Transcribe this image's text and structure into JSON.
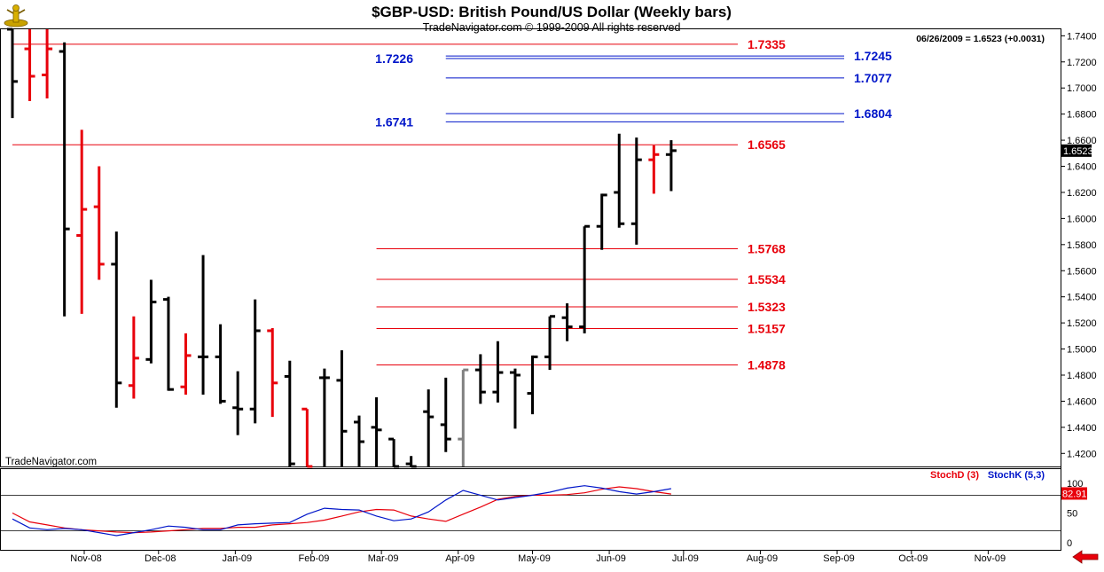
{
  "header": {
    "title": "$GBP-USD:  British Pound/US Dollar  (Weekly bars)",
    "subtitle": "TradeNavigator.com © 1999-2009 All rights reserved",
    "quote": "06/26/2009 = 1.6523 (+0.0031)",
    "watermark": "TradeNavigator.com"
  },
  "icons": {
    "logo": "trader-figure-logo-icon",
    "scroll": "red-left-arrow-icon"
  },
  "colors": {
    "bars_default": "#000000",
    "bars_down": "#e8000b",
    "bars_grey": "#808080",
    "level_red": "#e8000b",
    "level_blue": "#0015c9",
    "stochD": "#e8000b",
    "stochK": "#0015c9"
  },
  "chart_data": [
    {
      "type": "ohlc",
      "title": "$GBP-USD:  British Pound/US Dollar  (Weekly bars)",
      "ylim": [
        1.41,
        1.745
      ],
      "yticks": [
        "1.7400",
        "1.7200",
        "1.7000",
        "1.6800",
        "1.6600",
        "1.6400",
        "1.6200",
        "1.6000",
        "1.5800",
        "1.5600",
        "1.5400",
        "1.5200",
        "1.5000",
        "1.4800",
        "1.4600",
        "1.4400",
        "1.4200"
      ],
      "x_labels": [
        "Nov-08",
        "Dec-08",
        "Jan-09",
        "Feb-09",
        "Mar-09",
        "Apr-09",
        "May-09",
        "Jun-09",
        "Jul-09",
        "Aug-09",
        "Sep-09",
        "Oct-09",
        "Nov-09"
      ],
      "last_price_label": "1.6523",
      "bars": [
        {
          "date": "2008-10-03",
          "o": 1.78,
          "h": 1.785,
          "l": 1.677,
          "c": 1.705,
          "color": "black"
        },
        {
          "date": "2008-10-10",
          "o": 1.73,
          "h": 1.76,
          "l": 1.69,
          "c": 1.709,
          "color": "red"
        },
        {
          "date": "2008-10-17",
          "o": 1.71,
          "h": 1.765,
          "l": 1.692,
          "c": 1.73,
          "color": "red"
        },
        {
          "date": "2008-10-24",
          "o": 1.728,
          "h": 1.735,
          "l": 1.525,
          "c": 1.592,
          "color": "black"
        },
        {
          "date": "2008-10-31",
          "o": 1.587,
          "h": 1.668,
          "l": 1.527,
          "c": 1.607,
          "color": "red"
        },
        {
          "date": "2008-11-07",
          "o": 1.609,
          "h": 1.64,
          "l": 1.553,
          "c": 1.565,
          "color": "red"
        },
        {
          "date": "2008-11-14",
          "o": 1.565,
          "h": 1.59,
          "l": 1.455,
          "c": 1.474,
          "color": "black"
        },
        {
          "date": "2008-11-21",
          "o": 1.472,
          "h": 1.525,
          "l": 1.462,
          "c": 1.493,
          "color": "red"
        },
        {
          "date": "2008-11-28",
          "o": 1.492,
          "h": 1.553,
          "l": 1.489,
          "c": 1.536,
          "color": "black"
        },
        {
          "date": "2008-12-05",
          "o": 1.538,
          "h": 1.54,
          "l": 1.468,
          "c": 1.469,
          "color": "black"
        },
        {
          "date": "2008-12-12",
          "o": 1.471,
          "h": 1.512,
          "l": 1.465,
          "c": 1.495,
          "color": "red"
        },
        {
          "date": "2008-12-19",
          "o": 1.494,
          "h": 1.572,
          "l": 1.465,
          "c": 1.494,
          "color": "black"
        },
        {
          "date": "2008-12-26",
          "o": 1.494,
          "h": 1.519,
          "l": 1.458,
          "c": 1.46,
          "color": "black"
        },
        {
          "date": "2009-01-02",
          "o": 1.455,
          "h": 1.483,
          "l": 1.434,
          "c": 1.454,
          "color": "black"
        },
        {
          "date": "2009-01-09",
          "o": 1.454,
          "h": 1.538,
          "l": 1.443,
          "c": 1.514,
          "color": "black"
        },
        {
          "date": "2009-01-16",
          "o": 1.514,
          "h": 1.516,
          "l": 1.448,
          "c": 1.474,
          "color": "red"
        },
        {
          "date": "2009-01-23",
          "o": 1.479,
          "h": 1.491,
          "l": 1.41,
          "c": 1.412,
          "color": "black"
        },
        {
          "date": "2009-01-30",
          "o": 1.454,
          "h": 1.454,
          "l": 1.41,
          "c": 1.41,
          "color": "red"
        },
        {
          "date": "2009-02-06",
          "o": 1.478,
          "h": 1.485,
          "l": 1.41,
          "c": 1.478,
          "color": "black"
        },
        {
          "date": "2009-02-13",
          "o": 1.476,
          "h": 1.499,
          "l": 1.41,
          "c": 1.437,
          "color": "black"
        },
        {
          "date": "2009-02-20",
          "o": 1.444,
          "h": 1.449,
          "l": 1.41,
          "c": 1.429,
          "color": "black"
        },
        {
          "date": "2009-02-27",
          "o": 1.44,
          "h": 1.463,
          "l": 1.41,
          "c": 1.438,
          "color": "black"
        },
        {
          "date": "2009-03-06",
          "o": 1.431,
          "h": 1.431,
          "l": 1.41,
          "c": 1.41,
          "color": "black"
        },
        {
          "date": "2009-03-13",
          "o": 1.412,
          "h": 1.418,
          "l": 1.41,
          "c": 1.41,
          "color": "black"
        },
        {
          "date": "2009-03-20",
          "o": 1.452,
          "h": 1.469,
          "l": 1.41,
          "c": 1.448,
          "color": "black"
        },
        {
          "date": "2009-03-27",
          "o": 1.442,
          "h": 1.478,
          "l": 1.421,
          "c": 1.431,
          "color": "black"
        },
        {
          "date": "2009-04-03",
          "o": 1.431,
          "h": 1.484,
          "l": 1.41,
          "c": 1.484,
          "color": "grey"
        },
        {
          "date": "2009-04-10",
          "o": 1.484,
          "h": 1.496,
          "l": 1.458,
          "c": 1.467,
          "color": "black"
        },
        {
          "date": "2009-04-17",
          "o": 1.467,
          "h": 1.506,
          "l": 1.459,
          "c": 1.482,
          "color": "black"
        },
        {
          "date": "2009-04-24",
          "o": 1.482,
          "h": 1.485,
          "l": 1.439,
          "c": 1.48,
          "color": "black"
        },
        {
          "date": "2009-05-01",
          "o": 1.466,
          "h": 1.495,
          "l": 1.45,
          "c": 1.494,
          "color": "black"
        },
        {
          "date": "2009-05-08",
          "o": 1.494,
          "h": 1.525,
          "l": 1.484,
          "c": 1.525,
          "color": "black"
        },
        {
          "date": "2009-05-15",
          "o": 1.524,
          "h": 1.535,
          "l": 1.506,
          "c": 1.517,
          "color": "black"
        },
        {
          "date": "2009-05-22",
          "o": 1.517,
          "h": 1.594,
          "l": 1.512,
          "c": 1.594,
          "color": "black"
        },
        {
          "date": "2009-05-29",
          "o": 1.594,
          "h": 1.619,
          "l": 1.576,
          "c": 1.618,
          "color": "black"
        },
        {
          "date": "2009-06-05",
          "o": 1.62,
          "h": 1.665,
          "l": 1.593,
          "c": 1.596,
          "color": "black"
        },
        {
          "date": "2009-06-12",
          "o": 1.596,
          "h": 1.662,
          "l": 1.58,
          "c": 1.645,
          "color": "black"
        },
        {
          "date": "2009-06-19",
          "o": 1.645,
          "h": 1.656,
          "l": 1.619,
          "c": 1.649,
          "color": "red"
        },
        {
          "date": "2009-06-26",
          "o": 1.649,
          "h": 1.66,
          "l": 1.621,
          "c": 1.652,
          "color": "black"
        }
      ],
      "levels": [
        {
          "value": 1.7335,
          "label": "1.7335",
          "color": "red",
          "from": "2008-10-03",
          "label_side": "right"
        },
        {
          "value": 1.7245,
          "label": "1.7245",
          "color": "blue",
          "from": "2009-03-27",
          "label_side": "right"
        },
        {
          "value": 1.7226,
          "label": "1.7226",
          "color": "blue",
          "from": "2009-03-27",
          "label_side": "left"
        },
        {
          "value": 1.7077,
          "label": "1.7077",
          "color": "blue",
          "from": "2009-03-27",
          "label_side": "right"
        },
        {
          "value": 1.6804,
          "label": "1.6804",
          "color": "blue",
          "from": "2009-03-27",
          "label_side": "right"
        },
        {
          "value": 1.6741,
          "label": "1.6741",
          "color": "blue",
          "from": "2009-03-27",
          "label_side": "left"
        },
        {
          "value": 1.6565,
          "label": "1.6565",
          "color": "red",
          "from": "2008-10-03",
          "label_side": "right"
        },
        {
          "value": 1.5768,
          "label": "1.5768",
          "color": "red",
          "from": "2009-02-27",
          "label_side": "right"
        },
        {
          "value": 1.5534,
          "label": "1.5534",
          "color": "red",
          "from": "2009-02-27",
          "label_side": "right"
        },
        {
          "value": 1.5323,
          "label": "1.5323",
          "color": "red",
          "from": "2009-02-27",
          "label_side": "right"
        },
        {
          "value": 1.5157,
          "label": "1.5157",
          "color": "red",
          "from": "2009-02-27",
          "label_side": "right"
        },
        {
          "value": 1.4878,
          "label": "1.4878",
          "color": "red",
          "from": "2009-02-27",
          "label_side": "right"
        }
      ]
    },
    {
      "type": "line",
      "title": "",
      "ylim": [
        0,
        100
      ],
      "yticks": [
        "100",
        "50",
        "0"
      ],
      "reference_lines": [
        80,
        20
      ],
      "last_value_label": "82.91",
      "series": [
        {
          "name": "StochD (3)",
          "color": "red",
          "values": [
            50,
            35,
            30,
            25,
            22,
            20,
            18,
            17,
            18,
            20,
            22,
            24,
            24,
            26,
            26,
            30,
            32,
            34,
            38,
            45,
            52,
            56,
            55,
            45,
            40,
            36,
            48,
            60,
            73,
            78,
            80,
            80,
            81,
            84,
            90,
            94,
            91,
            86,
            82
          ]
        },
        {
          "name": "StochK (5,3)",
          "color": "blue",
          "values": [
            40,
            25,
            22,
            24,
            22,
            17,
            12,
            17,
            22,
            28,
            26,
            22,
            22,
            30,
            32,
            33,
            34,
            48,
            58,
            56,
            55,
            45,
            37,
            40,
            52,
            72,
            88,
            80,
            72,
            76,
            80,
            85,
            92,
            96,
            92,
            86,
            82,
            86,
            91
          ]
        }
      ]
    }
  ]
}
